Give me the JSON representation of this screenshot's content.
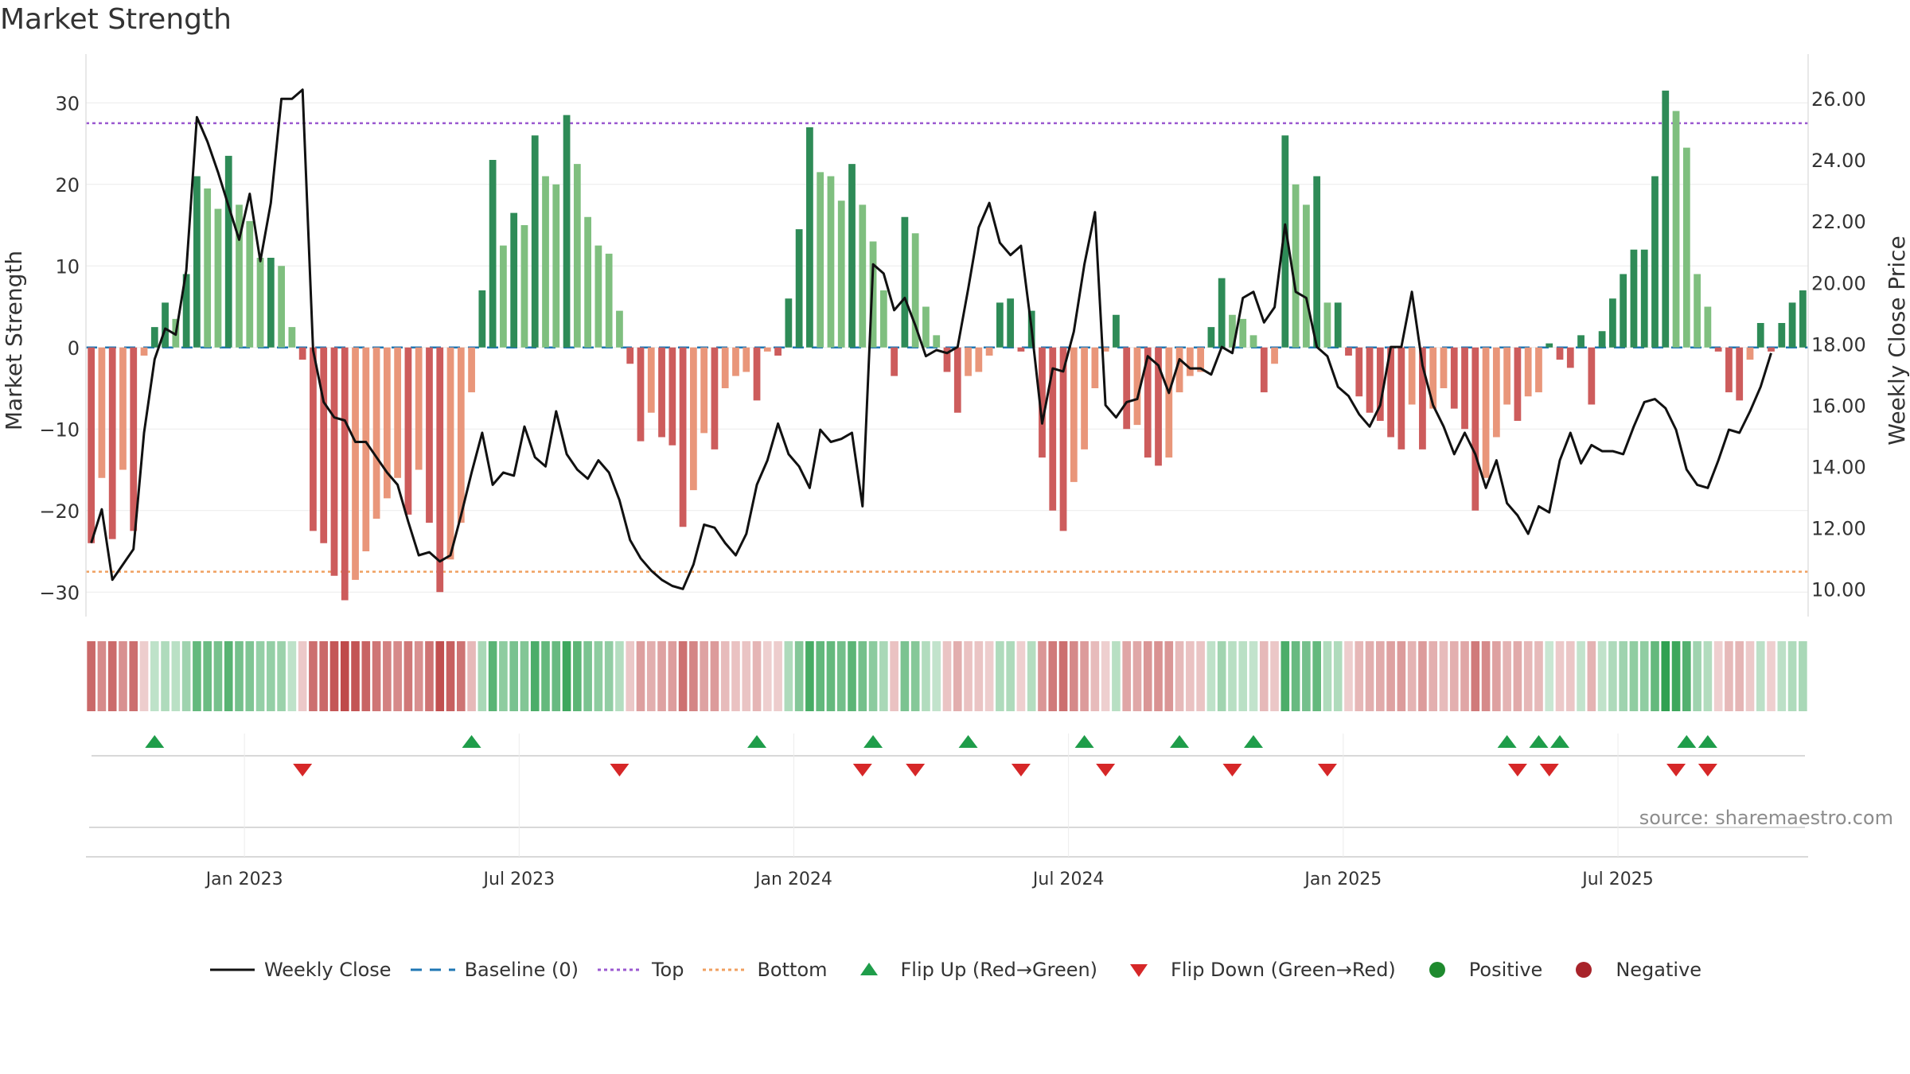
{
  "chart_data": {
    "type": "bar",
    "title": "Market Strength",
    "ylabel_left": "Market Strength",
    "ylabel_right": "Weekly Close Price",
    "left_ylim": [
      -33,
      35
    ],
    "right_ylim": [
      9.1,
      27.2
    ],
    "left_ticks": [
      30,
      20,
      10,
      0,
      -10,
      -20,
      -30
    ],
    "left_tick_labels": [
      "30",
      "20",
      "10",
      "0",
      "−10",
      "−20",
      "−30"
    ],
    "right_ticks": [
      26,
      24,
      22,
      20,
      18,
      16,
      14,
      12,
      10
    ],
    "right_tick_labels": [
      "26.00",
      "24.00",
      "22.00",
      "20.00",
      "18.00",
      "16.00",
      "14.00",
      "12.00",
      "10.00"
    ],
    "x_ticks": [
      14.5,
      40.5,
      66.5,
      92.5,
      118.5,
      144.5
    ],
    "x_tick_labels": [
      "Jan 2023",
      "Jul 2023",
      "Jan 2024",
      "Jul 2024",
      "Jan 2025",
      "Jul 2025"
    ],
    "top_level": 27.5,
    "bottom_level": -27.5,
    "strength": [
      -24,
      -16,
      -23.5,
      -15,
      -22.5,
      -1,
      2.5,
      5.5,
      3.5,
      9,
      21,
      19.5,
      17,
      23.5,
      17.5,
      15.5,
      11,
      11,
      10,
      2.5,
      -1.5,
      -22.5,
      -24,
      -28,
      -31,
      -28.5,
      -25,
      -21,
      -18.5,
      -16,
      -20.5,
      -15,
      -21.5,
      -30,
      -26,
      -21.5,
      -5.5,
      7,
      23,
      12.5,
      16.5,
      15,
      26,
      21,
      20,
      28.5,
      22.5,
      16,
      12.5,
      11.5,
      4.5,
      -2,
      -11.5,
      -8,
      -11,
      -12,
      -22,
      -17.5,
      -10.5,
      -12.5,
      -5,
      -3.5,
      -3,
      -6.5,
      -0.5,
      -1,
      6,
      14.5,
      27,
      21.5,
      21,
      18,
      22.5,
      17.5,
      13,
      7,
      -3.5,
      16,
      14,
      5,
      1.5,
      -3,
      -8,
      -3.5,
      -3,
      -1,
      5.5,
      6,
      -0.5,
      4.5,
      -13.5,
      -20,
      -22.5,
      -16.5,
      -12.5,
      -5,
      -0.5,
      4,
      -10,
      -9.5,
      -13.5,
      -14.5,
      -13.5,
      -5.5,
      -3.5,
      -3,
      2.5,
      8.5,
      4,
      3.5,
      1.5,
      -5.5,
      -2,
      26,
      20,
      17.5,
      21,
      5.5,
      5.5,
      -1,
      -6,
      -8,
      -9,
      -11,
      -12.5,
      -7,
      -12.5,
      -7.5,
      -5,
      -7.5,
      -10,
      -20,
      -16,
      -11,
      -7,
      -9,
      -6,
      -5.5,
      0.5,
      -1.5,
      -2.5,
      1.5,
      -7,
      2,
      6,
      9,
      12,
      12,
      21,
      31.5,
      29,
      24.5,
      9,
      5,
      -0.5,
      -5.5,
      -6.5,
      -1.5,
      3,
      -0.5,
      3,
      5.5,
      7
    ],
    "close": [
      11.5,
      12.6,
      10.3,
      10.8,
      11.3,
      15.1,
      17.5,
      18.5,
      18.3,
      20.4,
      25.4,
      24.6,
      23.6,
      22.5,
      21.4,
      22.9,
      20.7,
      22.6,
      26.0,
      26.0,
      26.3,
      17.8,
      16.1,
      15.6,
      15.5,
      14.8,
      14.8,
      14.3,
      13.8,
      13.4,
      12.2,
      11.1,
      11.2,
      10.9,
      11.1,
      12.4,
      13.8,
      15.1,
      13.4,
      13.8,
      13.7,
      15.3,
      14.3,
      14.0,
      15.8,
      14.4,
      13.9,
      13.6,
      14.2,
      13.8,
      12.9,
      11.6,
      11.0,
      10.6,
      10.3,
      10.1,
      10.0,
      10.8,
      12.1,
      12.0,
      11.5,
      11.1,
      11.8,
      13.4,
      14.2,
      15.4,
      14.4,
      14.0,
      13.3,
      15.2,
      14.8,
      14.9,
      15.1,
      12.7,
      20.6,
      20.3,
      19.1,
      19.5,
      18.6,
      17.6,
      17.8,
      17.7,
      17.9,
      19.8,
      21.8,
      22.6,
      21.3,
      20.9,
      21.2,
      18.5,
      15.4,
      17.2,
      17.1,
      18.4,
      20.6,
      22.3,
      16.0,
      15.6,
      16.1,
      16.2,
      17.6,
      17.3,
      16.4,
      17.5,
      17.2,
      17.2,
      17.0,
      17.9,
      17.7,
      19.5,
      19.7,
      18.7,
      19.2,
      21.9,
      19.7,
      19.5,
      17.9,
      17.6,
      16.6,
      16.3,
      15.7,
      15.3,
      16.0,
      17.9,
      17.9,
      19.7,
      17.3,
      16.0,
      15.3,
      14.4,
      15.1,
      14.4,
      13.3,
      14.2,
      12.8,
      12.4,
      11.8,
      12.7,
      12.5,
      14.2,
      15.1,
      14.1,
      14.7,
      14.5,
      14.5,
      14.4,
      15.3,
      16.1,
      16.2,
      15.9,
      15.2,
      13.9,
      13.4,
      13.3,
      14.2,
      15.2,
      15.1,
      15.8,
      16.6,
      17.7
    ]
  },
  "regime_colors": {
    "strong_pos": "#2e8b57",
    "weak_pos": "#7fbf7f",
    "strong_neg": "#cd5c5c",
    "weak_neg": "#e9967a"
  },
  "line_colors": {
    "close": "#111111",
    "baseline": "#1f77b4",
    "top": "#9b59d0",
    "bottom": "#f0a060",
    "flip_up": "#1f9d4a",
    "flip_down": "#d62728"
  },
  "flip_up_indices": [
    6,
    36,
    63,
    74,
    83,
    94,
    103,
    110,
    134,
    137,
    139,
    151,
    153
  ],
  "flip_down_indices": [
    20,
    50,
    73,
    78,
    88,
    96,
    108,
    117,
    135,
    138,
    150,
    153
  ],
  "source_note": "source: sharemaestro.com",
  "legend": {
    "weekly_close": "Weekly Close",
    "baseline": "Baseline (0)",
    "top": "Top",
    "bottom": "Bottom",
    "flip_up": "Flip Up (Red→Green)",
    "flip_down": "Flip Down (Green→Red)",
    "positive": "Positive",
    "negative": "Negative"
  }
}
